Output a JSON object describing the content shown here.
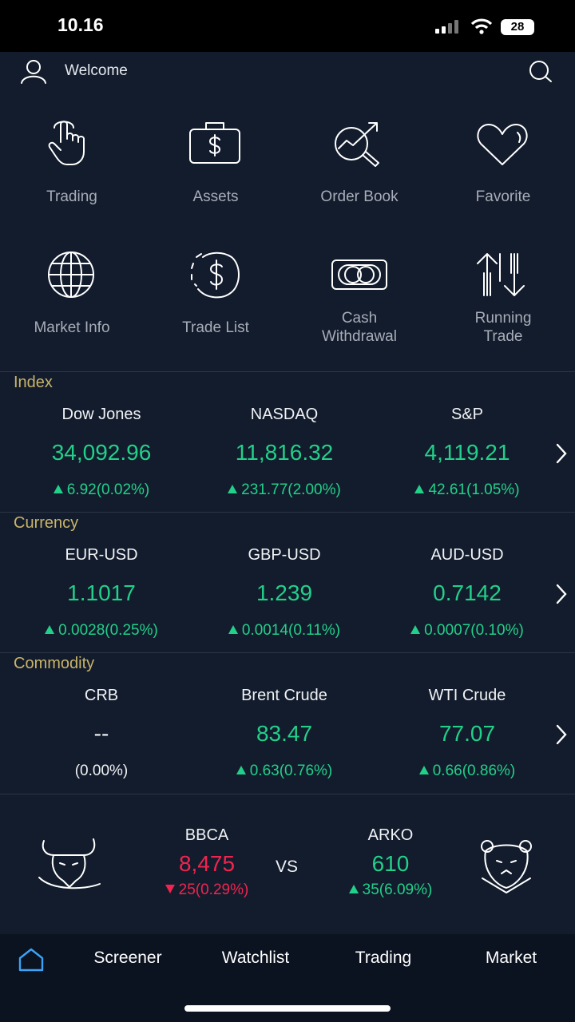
{
  "status_bar": {
    "time": "10.16",
    "battery": "28"
  },
  "header": {
    "title": "Welcome"
  },
  "menu": [
    {
      "label": "Trading"
    },
    {
      "label": "Assets"
    },
    {
      "label": "Order Book"
    },
    {
      "label": "Favorite"
    },
    {
      "label": "Market Info"
    },
    {
      "label": "Trade List"
    },
    {
      "label": "Cash Withdrawal"
    },
    {
      "label": "Running Trade"
    }
  ],
  "sections": [
    {
      "title": "Index",
      "items": [
        {
          "name": "Dow Jones",
          "value": "34,092.96",
          "change": "6.92(0.02%)",
          "direction": "up"
        },
        {
          "name": "NASDAQ",
          "value": "11,816.32",
          "change": "231.77(2.00%)",
          "direction": "up"
        },
        {
          "name": "S&P",
          "value": "4,119.21",
          "change": "42.61(1.05%)",
          "direction": "up"
        }
      ]
    },
    {
      "title": "Currency",
      "items": [
        {
          "name": "EUR-USD",
          "value": "1.1017",
          "change": "0.0028(0.25%)",
          "direction": "up"
        },
        {
          "name": "GBP-USD",
          "value": "1.239",
          "change": "0.0014(0.11%)",
          "direction": "up"
        },
        {
          "name": "AUD-USD",
          "value": "0.7142",
          "change": "0.0007(0.10%)",
          "direction": "up"
        }
      ]
    },
    {
      "title": "Commodity",
      "items": [
        {
          "name": "CRB",
          "value": "--",
          "change": "(0.00%)",
          "direction": "none"
        },
        {
          "name": "Brent Crude",
          "value": "83.47",
          "change": "0.63(0.76%)",
          "direction": "up"
        },
        {
          "name": "WTI Crude",
          "value": "77.07",
          "change": "0.66(0.86%)",
          "direction": "up"
        }
      ]
    }
  ],
  "versus": {
    "left": {
      "code": "BBCA",
      "price": "8,475",
      "change": "25(0.29%)",
      "direction": "down"
    },
    "label": "VS",
    "right": {
      "code": "ARKO",
      "price": "610",
      "change": "35(6.09%)",
      "direction": "up"
    }
  },
  "nav": [
    {
      "label": "Screener"
    },
    {
      "label": "Watchlist"
    },
    {
      "label": "Trading"
    },
    {
      "label": "Market"
    }
  ]
}
